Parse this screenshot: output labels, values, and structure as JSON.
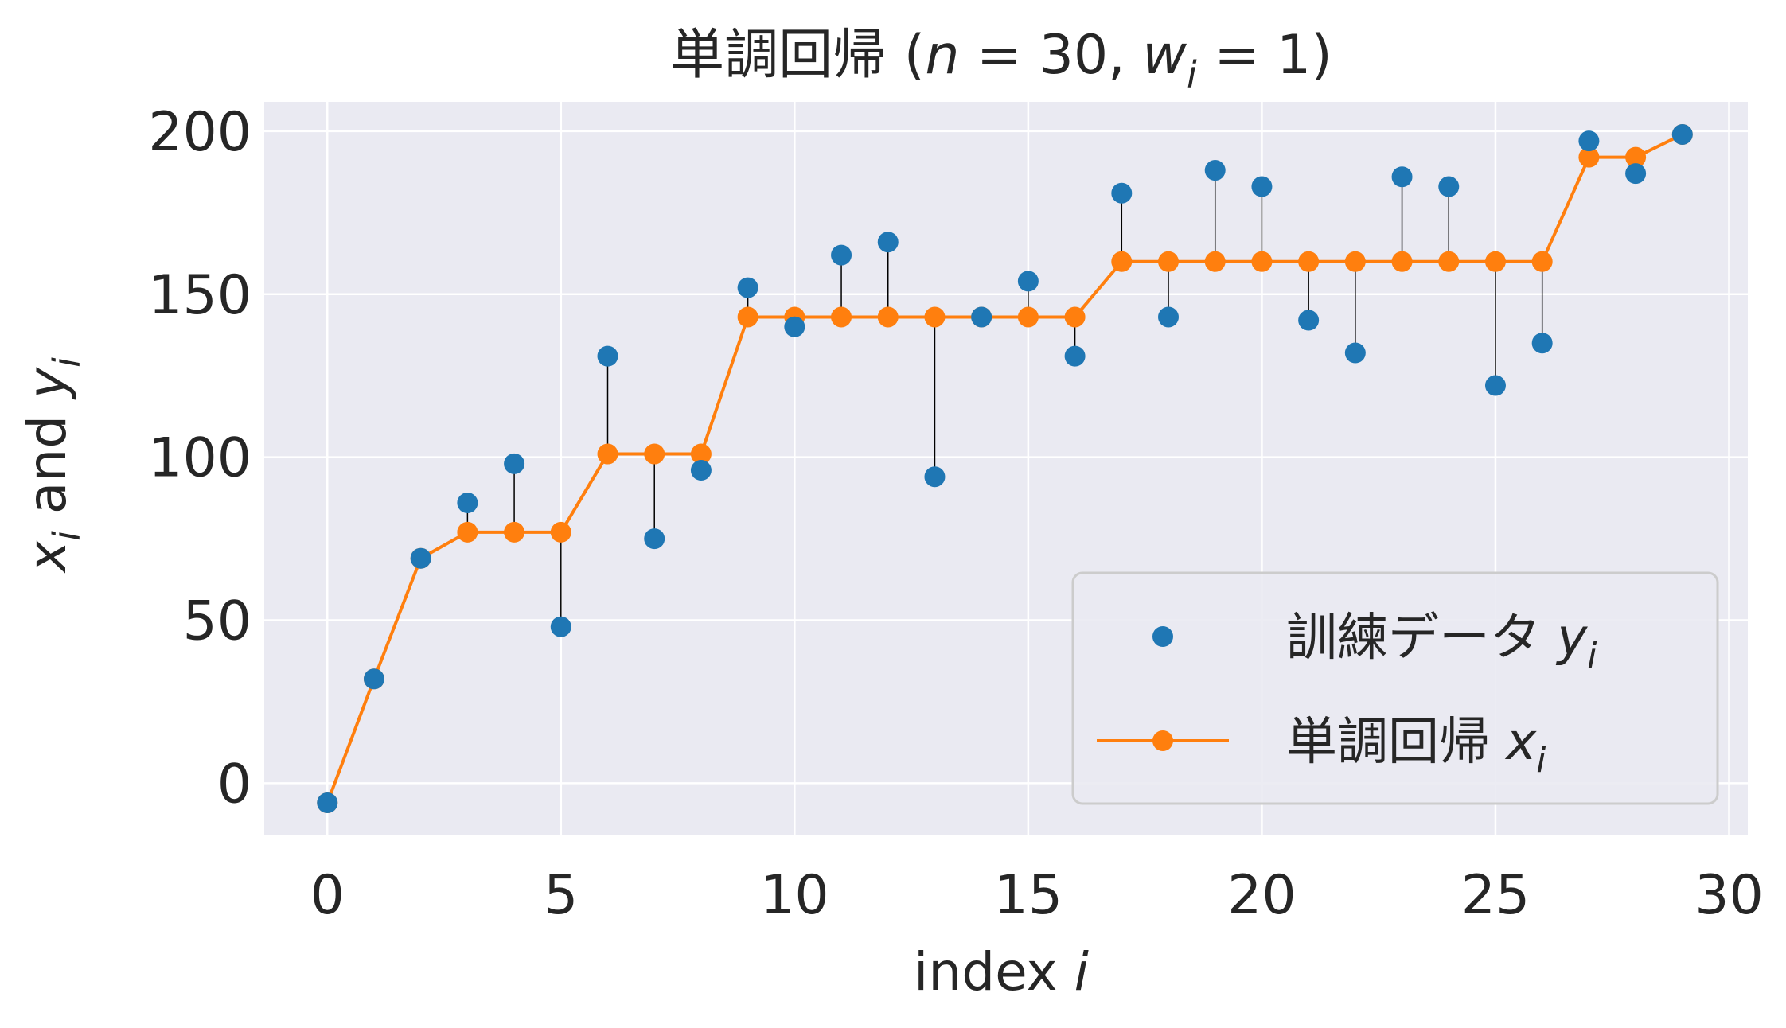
{
  "chart_data": {
    "type": "scatter",
    "title": "単調回帰 (n = 30, w_i = 1)",
    "xlabel": "index i",
    "ylabel": "x_i and y_i",
    "xlim": [
      -1.35,
      30.4
    ],
    "ylim": [
      -16,
      209
    ],
    "xticks": [
      0,
      5,
      10,
      15,
      20,
      25,
      30
    ],
    "yticks": [
      0,
      50,
      100,
      150,
      200
    ],
    "grid": true,
    "legend_position": "bottom-right",
    "series": [
      {
        "name": "訓練データ y_i",
        "type": "scatter",
        "color": "#1f77b4",
        "x": [
          0,
          1,
          2,
          3,
          4,
          5,
          6,
          7,
          8,
          9,
          10,
          11,
          12,
          13,
          14,
          15,
          16,
          17,
          18,
          19,
          20,
          21,
          22,
          23,
          24,
          25,
          26,
          27,
          28,
          29
        ],
        "values": [
          -6,
          32,
          69,
          86,
          98,
          48,
          131,
          75,
          96,
          152,
          140,
          162,
          166,
          94,
          143,
          154,
          131,
          181,
          143,
          188,
          183,
          142,
          132,
          186,
          183,
          122,
          135,
          197,
          187,
          199
        ]
      },
      {
        "name": "単調回帰 x_i",
        "type": "line",
        "color": "#ff7f0e",
        "x": [
          0,
          1,
          2,
          3,
          4,
          5,
          6,
          7,
          8,
          9,
          10,
          11,
          12,
          13,
          14,
          15,
          16,
          17,
          18,
          19,
          20,
          21,
          22,
          23,
          24,
          25,
          26,
          27,
          28,
          29
        ],
        "values": [
          -6,
          32,
          69,
          77,
          77,
          77,
          101,
          101,
          101,
          143,
          143,
          143,
          143,
          143,
          143,
          143,
          143,
          160,
          160,
          160,
          160,
          160,
          160,
          160,
          160,
          160,
          160,
          192,
          192,
          199
        ]
      }
    ]
  },
  "colors": {
    "plot_background": "#eaeaf2",
    "grid": "#ffffff",
    "scatter": "#1f77b4",
    "line": "#ff7f0e",
    "residual": "#000000"
  }
}
